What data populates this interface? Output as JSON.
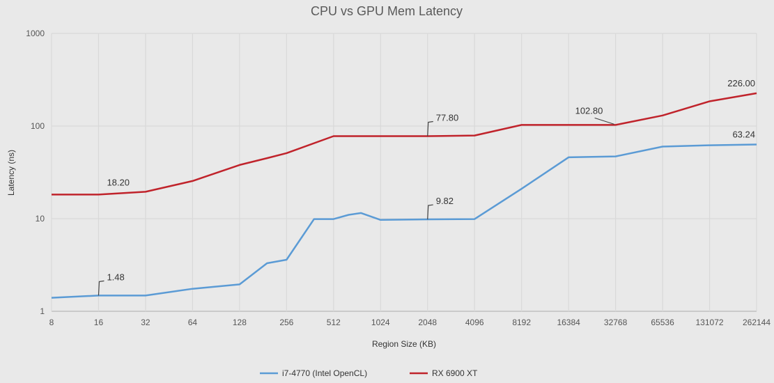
{
  "chart_data": {
    "type": "line",
    "title": "CPU vs GPU Mem Latency",
    "xlabel": "Region Size (KB)",
    "ylabel": "Latency (ns)",
    "xscale": "log2",
    "yscale": "log10",
    "ylim": [
      1,
      1000
    ],
    "xlim": [
      8,
      262144
    ],
    "grid": true,
    "legend_position": "bottom",
    "x_ticks": [
      "8",
      "16",
      "32",
      "64",
      "128",
      "256",
      "512",
      "1024",
      "2048",
      "4096",
      "8192",
      "16384",
      "32768",
      "65536",
      "131072",
      "262144"
    ],
    "y_ticks": [
      "1",
      "10",
      "100",
      "1000"
    ],
    "series": [
      {
        "name": "i7-4770 (Intel OpenCL)",
        "color": "#5b9bd5",
        "x": [
          8,
          16,
          32,
          64,
          128,
          192,
          256,
          384,
          512,
          640,
          768,
          1024,
          2048,
          4096,
          8192,
          16384,
          32768,
          65536,
          131072,
          262144
        ],
        "values": [
          1.4,
          1.48,
          1.48,
          1.75,
          1.95,
          3.3,
          3.6,
          9.9,
          9.9,
          11.0,
          11.5,
          9.7,
          9.82,
          9.9,
          21,
          46,
          47,
          60,
          62,
          63.24
        ],
        "labels": [
          {
            "x": 16,
            "text": "1.48"
          },
          {
            "x": 2048,
            "text": "9.82"
          },
          {
            "x": 262144,
            "text": "63.24"
          }
        ]
      },
      {
        "name": "RX 6900 XT",
        "color": "#c0232b",
        "x": [
          8,
          16,
          32,
          64,
          128,
          192,
          256,
          512,
          1024,
          2048,
          4096,
          8192,
          16384,
          32768,
          65536,
          131072,
          262144
        ],
        "values": [
          18.2,
          18.2,
          19.5,
          25.5,
          38,
          45,
          51,
          77.8,
          77.8,
          77.8,
          79,
          102.8,
          102.8,
          102.8,
          130,
          185,
          226
        ],
        "labels": [
          {
            "x": 16,
            "text": "18.20"
          },
          {
            "x": 2048,
            "text": "77.80"
          },
          {
            "x": 32768,
            "text": "102.80"
          },
          {
            "x": 262144,
            "text": "226.00"
          }
        ]
      }
    ]
  }
}
